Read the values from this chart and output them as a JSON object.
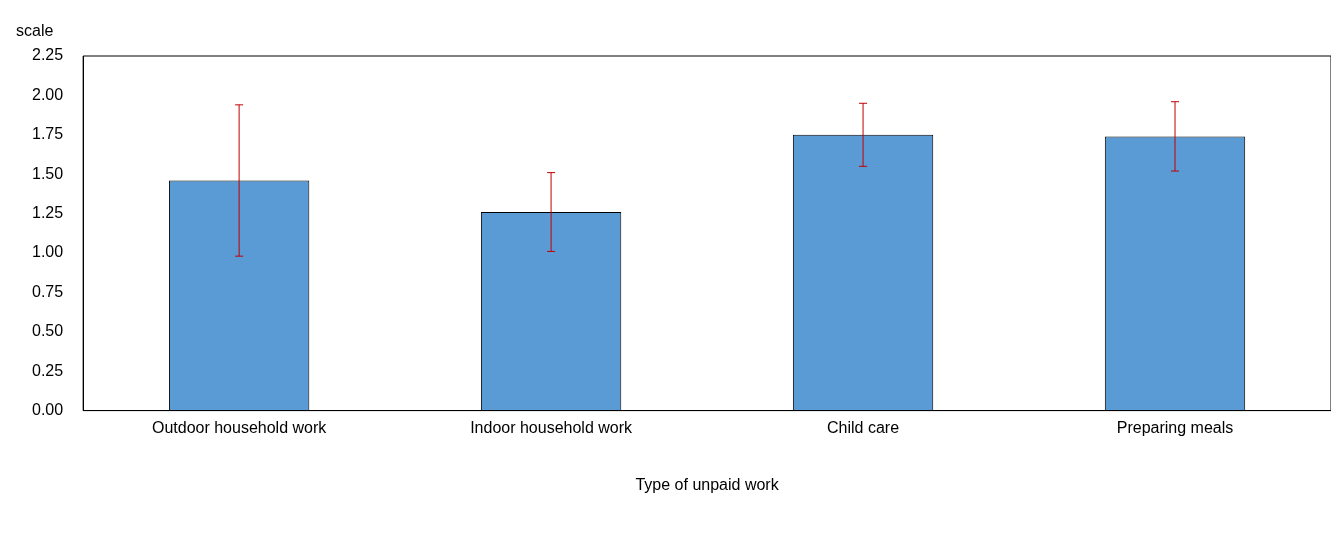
{
  "chart_data": {
    "type": "bar",
    "ylabel": "scale",
    "xlabel": "Type of unpaid work",
    "categories": [
      "Outdoor household work",
      "Indoor household work",
      "Child care",
      "Preparing meals"
    ],
    "values": [
      1.46,
      1.26,
      1.75,
      1.74
    ],
    "errors": [
      0.48,
      0.25,
      0.2,
      0.22
    ],
    "color": "#5b9bd5",
    "ylim": [
      0,
      2.25
    ],
    "yticks": [
      {
        "value": 0,
        "label": "0.00"
      },
      {
        "value": 0.25,
        "label": "0.25"
      },
      {
        "value": 0.5,
        "label": "0.50"
      },
      {
        "value": 0.75,
        "label": "0.75"
      },
      {
        "value": 1,
        "label": "1.00"
      },
      {
        "value": 1.25,
        "label": "1.25"
      },
      {
        "value": 1.5,
        "label": "1.50"
      },
      {
        "value": 1.75,
        "label": "1.75"
      },
      {
        "value": 2,
        "label": "2.00"
      },
      {
        "value": 2.25,
        "label": "2.25"
      }
    ],
    "grid": false,
    "legend": false
  }
}
